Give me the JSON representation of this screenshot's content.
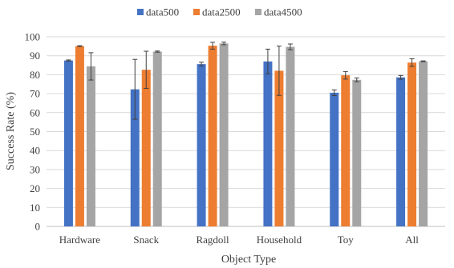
{
  "chart_data": {
    "type": "bar",
    "title": "",
    "xlabel": "Object Type",
    "ylabel": "Success Rate (%)",
    "ylim": [
      0,
      100
    ],
    "yticks": [
      0,
      10,
      20,
      30,
      40,
      50,
      60,
      70,
      80,
      90,
      100
    ],
    "grid": true,
    "legend_position": "top-center",
    "categories": [
      "Hardware",
      "Snack",
      "Ragdoll",
      "Household",
      "Toy",
      "All"
    ],
    "series": [
      {
        "name": "data500",
        "color": "#4472C4",
        "values": [
          87.5,
          72.3,
          85.6,
          87.0,
          70.5,
          78.6
        ],
        "error": [
          0.3,
          15.8,
          1.0,
          6.5,
          1.5,
          1.0
        ]
      },
      {
        "name": "data2500",
        "color": "#ED7D31",
        "values": [
          95.1,
          82.6,
          95.3,
          82.1,
          79.7,
          86.4
        ],
        "error": [
          0.2,
          9.8,
          1.8,
          13.0,
          2.0,
          2.0
        ]
      },
      {
        "name": "data4500",
        "color": "#A5A5A5",
        "values": [
          84.4,
          92.2,
          96.5,
          94.7,
          77.3,
          87.1
        ],
        "error": [
          7.2,
          0.3,
          0.7,
          1.5,
          1.0,
          0.2
        ]
      }
    ]
  }
}
